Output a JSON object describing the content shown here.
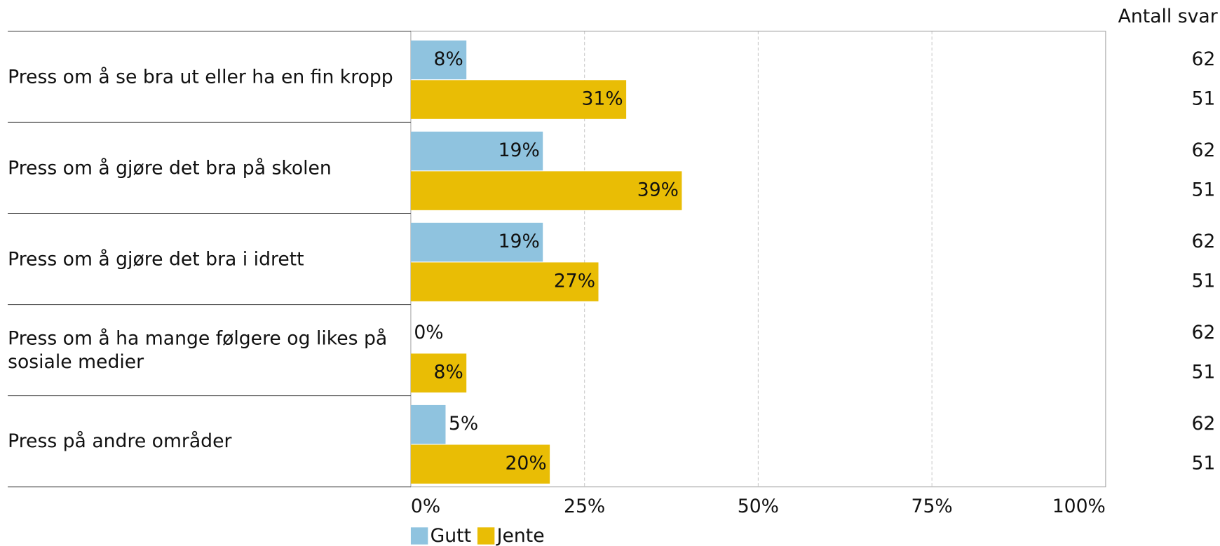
{
  "chart_data": {
    "type": "hbar",
    "categories": [
      "Press om å se bra ut eller ha en fin kropp",
      "Press om å gjøre det bra på skolen",
      "Press om å gjøre det bra i idrett",
      "Press om å ha mange følgere og likes på sosiale medier",
      "Press på andre områder"
    ],
    "series": [
      {
        "name": "Gutt",
        "color": "#8fc3df",
        "values": [
          8,
          19,
          19,
          0,
          5
        ],
        "value_labels": [
          "8%",
          "19%",
          "19%",
          "0%",
          "5%"
        ],
        "counts": [
          62,
          62,
          62,
          62,
          62
        ]
      },
      {
        "name": "Jente",
        "color": "#e9bd05",
        "values": [
          31,
          39,
          27,
          8,
          20
        ],
        "value_labels": [
          "31%",
          "39%",
          "27%",
          "8%",
          "20%"
        ],
        "counts": [
          51,
          51,
          51,
          51,
          51
        ]
      }
    ],
    "counts_title": "Antall svar",
    "xlim": [
      0,
      100
    ],
    "xticks": [
      {
        "value": 0,
        "label": "0%"
      },
      {
        "value": 25,
        "label": "25%"
      },
      {
        "value": 50,
        "label": "50%"
      },
      {
        "value": 75,
        "label": "75%"
      },
      {
        "value": 100,
        "label": "100%"
      }
    ],
    "grid": true,
    "legend": "bottom"
  }
}
